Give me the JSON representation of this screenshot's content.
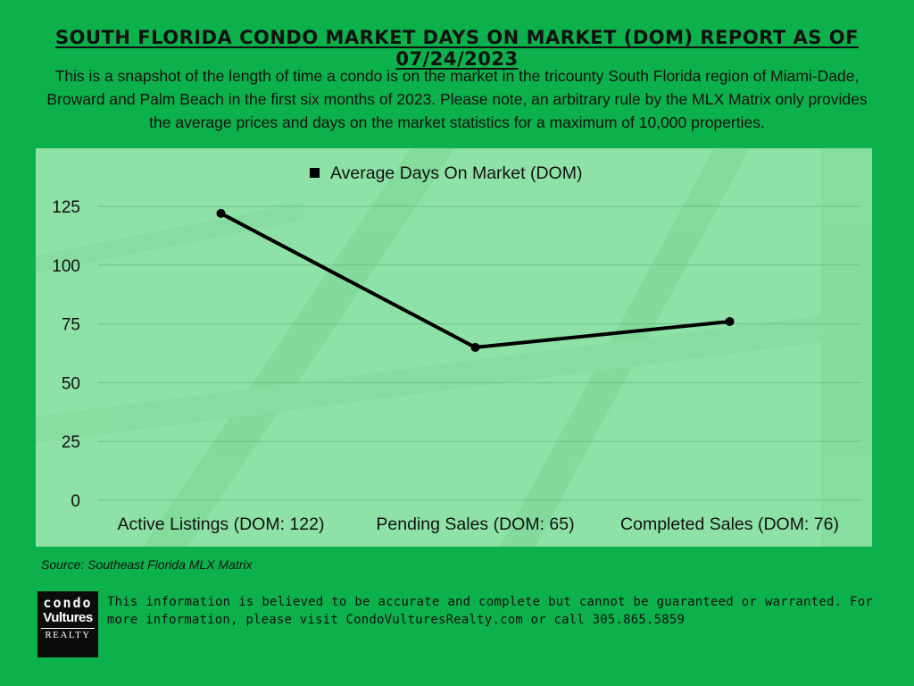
{
  "header": {
    "title": "SOUTH FLORIDA CONDO MARKET DAYS ON MARKET (DOM) REPORT AS OF 07/24/2023",
    "intro": "This is a snapshot of the length of time a condo is on the market in the tricounty South Florida region of Miami-Dade, Broward and Palm Beach in the first six months of 2023. Please note, an arbitrary rule by the MLX Matrix only provides the average prices and days on the market statistics for a maximum of 10,000 properties."
  },
  "chart_data": {
    "type": "line",
    "categories": [
      "Active Listings (DOM: 122)",
      "Pending Sales (DOM: 65)",
      "Completed Sales (DOM: 76)"
    ],
    "series": [
      {
        "name": "Average Days On Market (DOM)",
        "values": [
          122,
          65,
          76
        ],
        "color": "#000000"
      }
    ],
    "yticks": [
      0,
      25,
      50,
      75,
      100,
      125
    ],
    "ylim": [
      0,
      130
    ],
    "grid": true,
    "legend": "top-center",
    "panel_color": "#8fe2a7",
    "gridline_color": "#6fbf86"
  },
  "footer": {
    "source": "Source: Southeast Florida MLX Matrix",
    "logo": {
      "line1": "condo",
      "line2": "Vultures",
      "line3": "REALTY"
    },
    "disclaimer": "This information is believed to be accurate and complete but cannot be guaranteed or warranted. For more information, please visit CondoVulturesRealty.com or call 305.865.5859"
  },
  "colors": {
    "background": "#0db14b",
    "text": "#111111"
  }
}
